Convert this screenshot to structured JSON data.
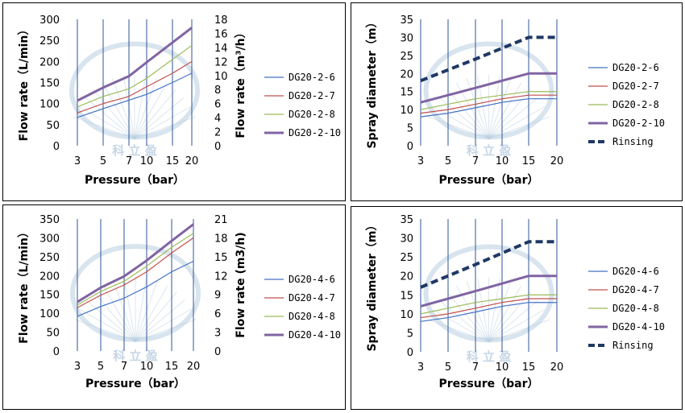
{
  "chart_data": [
    {
      "id": "p1",
      "type": "line",
      "categories": [
        "3",
        "5",
        "7",
        "10",
        "15",
        "20"
      ],
      "xlabel": "Pressure（bar）",
      "ylabel": "Flow rate（L/min）",
      "y2label": "Flow rate（m³/h）",
      "ylim": [
        0,
        300
      ],
      "yticks": [
        0,
        50,
        100,
        150,
        200,
        250,
        300
      ],
      "y2lim": [
        0,
        18
      ],
      "y2ticks": [
        0,
        2,
        4,
        6,
        8,
        10,
        12,
        14,
        16,
        18
      ],
      "grid": "vertical",
      "legend": "right",
      "series": [
        {
          "name": "DG20-2-6",
          "color": "#4472c4",
          "width": 1.2,
          "values": [
            67,
            88,
            108,
            122,
            150,
            172
          ]
        },
        {
          "name": "DG20-2-7",
          "color": "#c0504d",
          "width": 1.2,
          "values": [
            78,
            100,
            117,
            140,
            172,
            200
          ]
        },
        {
          "name": "DG20-2-8",
          "color": "#9bbb59",
          "width": 1.2,
          "values": [
            92,
            117,
            135,
            160,
            205,
            238
          ]
        },
        {
          "name": "DG20-2-10",
          "color": "#8064a2",
          "width": 3,
          "values": [
            107,
            138,
            165,
            198,
            245,
            280
          ]
        }
      ]
    },
    {
      "id": "p2",
      "type": "line",
      "categories": [
        "3",
        "5",
        "7",
        "10",
        "15",
        "20"
      ],
      "xlabel": "Pressure（bar）",
      "ylabel": "Spray diameter（m）",
      "ylim": [
        0,
        35
      ],
      "yticks": [
        0,
        5,
        10,
        15,
        20,
        25,
        30,
        35
      ],
      "grid": "vertical",
      "legend": "right",
      "series": [
        {
          "name": "DG20-2-6",
          "color": "#4472c4",
          "width": 1.2,
          "values": [
            8,
            9,
            10.5,
            12,
            13,
            13
          ]
        },
        {
          "name": "DG20-2-7",
          "color": "#c0504d",
          "width": 1.2,
          "values": [
            9,
            10,
            11.5,
            13,
            14,
            14
          ]
        },
        {
          "name": "DG20-2-8",
          "color": "#9bbb59",
          "width": 1.2,
          "values": [
            10,
            11.5,
            13,
            14,
            15,
            15
          ]
        },
        {
          "name": "DG20-2-10",
          "color": "#8064a2",
          "width": 3,
          "values": [
            12,
            14,
            16,
            18,
            20,
            20
          ]
        },
        {
          "name": "Rinsing",
          "color": "#1f3864",
          "width": 4,
          "dashed": true,
          "values": [
            18,
            21,
            24,
            27,
            30,
            30
          ]
        }
      ]
    },
    {
      "id": "p3",
      "type": "line",
      "categories": [
        "3",
        "5",
        "7",
        "10",
        "15",
        "20"
      ],
      "xlabel": "Pressure（bar）",
      "ylabel": "Flow rate（L/min）",
      "y2label": "Flow rate (m3/h)",
      "ylim": [
        0,
        350
      ],
      "yticks": [
        0,
        50,
        100,
        150,
        200,
        250,
        300,
        350
      ],
      "y2lim": [
        0,
        21
      ],
      "y2ticks": [
        0,
        3,
        6,
        9,
        12,
        15,
        18,
        21
      ],
      "grid": "vertical",
      "legend": "right",
      "series": [
        {
          "name": "DG20-4-6",
          "color": "#4472c4",
          "width": 1.2,
          "values": [
            92,
            118,
            140,
            170,
            210,
            238
          ]
        },
        {
          "name": "DG20-4-7",
          "color": "#c0504d",
          "width": 1.2,
          "values": [
            115,
            148,
            175,
            210,
            260,
            300
          ]
        },
        {
          "name": "DG20-4-8",
          "color": "#9bbb59",
          "width": 1.2,
          "values": [
            122,
            158,
            185,
            225,
            275,
            312
          ]
        },
        {
          "name": "DG20-4-10",
          "color": "#8064a2",
          "width": 3,
          "values": [
            130,
            168,
            198,
            240,
            292,
            336
          ]
        }
      ]
    },
    {
      "id": "p4",
      "type": "line",
      "categories": [
        "3",
        "5",
        "7",
        "10",
        "15",
        "20"
      ],
      "xlabel": "Pressure（bar）",
      "ylabel": "Spray diameter（m）",
      "ylim": [
        0,
        35
      ],
      "yticks": [
        0,
        5,
        10,
        15,
        20,
        25,
        30,
        35
      ],
      "grid": "vertical",
      "legend": "right",
      "series": [
        {
          "name": "DG20-4-6",
          "color": "#4472c4",
          "width": 1.2,
          "values": [
            8,
            9,
            10.5,
            12,
            13,
            13
          ]
        },
        {
          "name": "DG20-4-7",
          "color": "#c0504d",
          "width": 1.2,
          "values": [
            9,
            10,
            11.5,
            13,
            14,
            14
          ]
        },
        {
          "name": "DG20-4-8",
          "color": "#9bbb59",
          "width": 1.2,
          "values": [
            10,
            11.5,
            13,
            14,
            15,
            15
          ]
        },
        {
          "name": "DG20-4-10",
          "color": "#8064a2",
          "width": 3,
          "values": [
            12,
            14,
            16,
            18,
            20,
            20
          ]
        },
        {
          "name": "Rinsing",
          "color": "#1f3864",
          "width": 4,
          "dashed": true,
          "values": [
            17,
            20,
            23,
            26,
            29,
            29
          ]
        }
      ]
    }
  ],
  "watermark": {
    "text": "科 立 盈",
    "color": "#b8cde0"
  }
}
